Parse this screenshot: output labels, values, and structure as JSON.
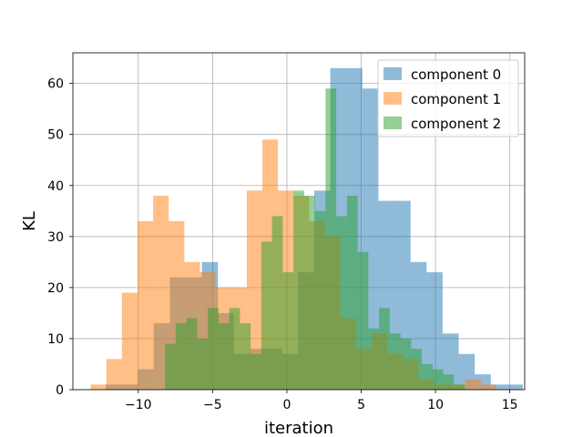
{
  "chart_data": {
    "type": "histogram",
    "xlabel": "iteration",
    "ylabel": "KL",
    "xlim": [
      -14.4,
      16.0
    ],
    "ylim": [
      0,
      66
    ],
    "xticks": [
      -10,
      -5,
      0,
      5,
      10,
      15
    ],
    "yticks": [
      0,
      10,
      20,
      30,
      40,
      50,
      60
    ],
    "xtick_labels": [
      "−10",
      "−5",
      "0",
      "5",
      "10",
      "15"
    ],
    "ytick_labels": [
      "0",
      "10",
      "20",
      "30",
      "40",
      "50",
      "60"
    ],
    "grid": true,
    "legend_position": "top-right",
    "series": [
      {
        "name": "component 0",
        "color": "#1f77b4",
        "alpha": 0.5,
        "start": -12.2,
        "bin_width": 1.08,
        "counts": [
          1,
          1,
          4,
          13,
          22,
          22,
          25,
          15,
          7,
          8,
          8,
          7,
          23,
          39,
          63,
          63,
          59,
          37,
          37,
          25,
          23,
          11,
          7,
          3,
          1,
          1
        ]
      },
      {
        "name": "component 1",
        "color": "#ff7f0e",
        "alpha": 0.5,
        "start": -13.2,
        "bin_width": 1.05,
        "counts": [
          1,
          6,
          19,
          33,
          38,
          33,
          25,
          23,
          20,
          20,
          39,
          49,
          39,
          38,
          33,
          30,
          14,
          8,
          11,
          7,
          6,
          2,
          1,
          1,
          2,
          1
        ]
      },
      {
        "name": "component 2",
        "color": "#2ca02c",
        "alpha": 0.5,
        "start": -8.2,
        "bin_width": 0.72,
        "counts": [
          9,
          13,
          14,
          10,
          16,
          13,
          16,
          13,
          7,
          29,
          34,
          23,
          39,
          38,
          35,
          59,
          34,
          38,
          27,
          12,
          16,
          11,
          10,
          8,
          5,
          4,
          3,
          1
        ]
      }
    ]
  }
}
